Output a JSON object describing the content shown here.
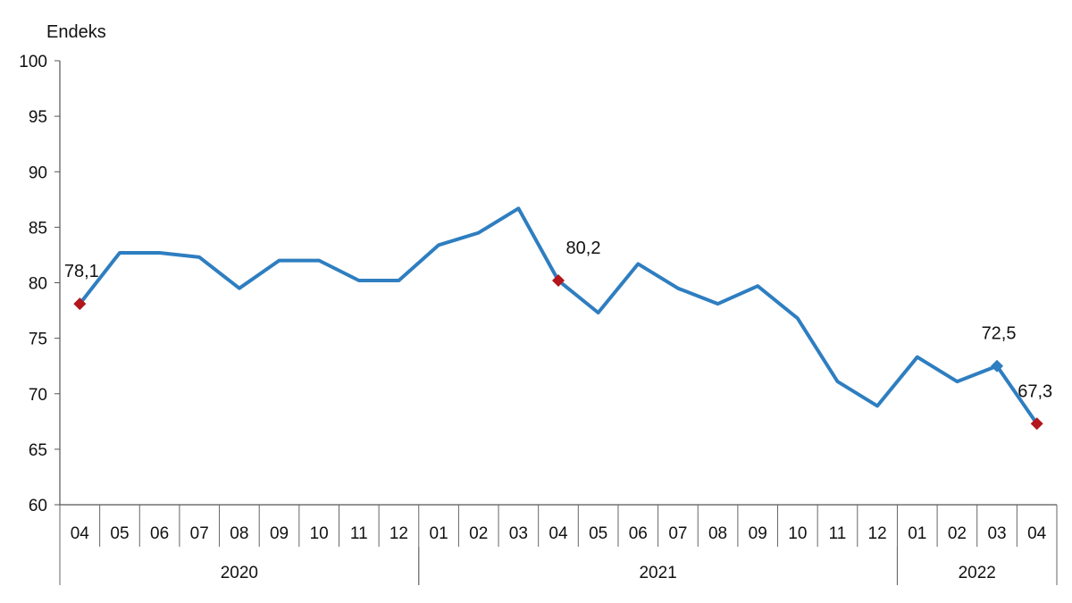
{
  "chart_data": {
    "type": "line",
    "title": "",
    "xlabel": "",
    "ylabel": "Endeks",
    "ylim": [
      60,
      100
    ],
    "yticks": [
      60,
      65,
      70,
      75,
      80,
      85,
      90,
      95,
      100
    ],
    "grid": false,
    "legend": "none",
    "categories": [
      "04",
      "05",
      "06",
      "07",
      "08",
      "09",
      "10",
      "11",
      "12",
      "01",
      "02",
      "03",
      "04",
      "05",
      "06",
      "07",
      "08",
      "09",
      "10",
      "11",
      "12",
      "01",
      "02",
      "03",
      "04"
    ],
    "years": [
      {
        "label": "2020",
        "start": 0,
        "end": 8
      },
      {
        "label": "2021",
        "start": 9,
        "end": 20
      },
      {
        "label": "2022",
        "start": 21,
        "end": 24
      }
    ],
    "series": [
      {
        "color": "#2E7EC0",
        "values": [
          78.1,
          82.7,
          82.7,
          82.3,
          79.5,
          82.0,
          82.0,
          80.2,
          80.2,
          83.4,
          84.5,
          86.7,
          80.2,
          77.3,
          81.7,
          79.5,
          78.1,
          79.7,
          76.8,
          71.1,
          68.9,
          73.3,
          71.1,
          72.5,
          67.3
        ]
      }
    ],
    "annotations": [
      {
        "index": 0,
        "text": "78,1",
        "marker": "diamond",
        "color": "#B3161B"
      },
      {
        "index": 12,
        "text": "80,2",
        "marker": "diamond",
        "color": "#B3161B"
      },
      {
        "index": 23,
        "text": "72,5",
        "marker": "diamond",
        "color": "#2E7EC0"
      },
      {
        "index": 24,
        "text": "67,3",
        "marker": "diamond",
        "color": "#B3161B"
      }
    ]
  }
}
